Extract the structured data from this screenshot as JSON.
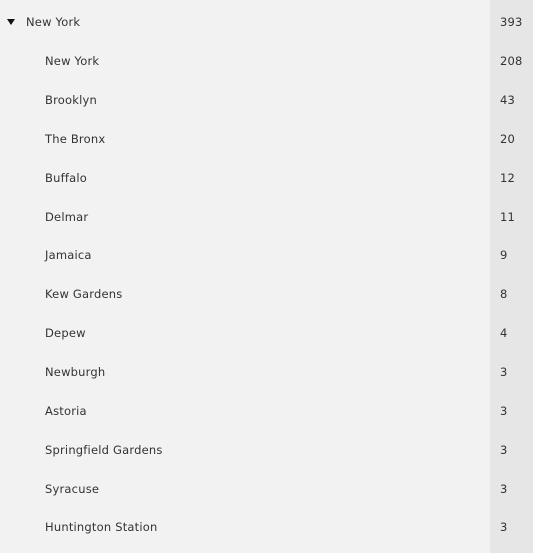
{
  "group": {
    "label": "New York",
    "count": "393",
    "expanded": true,
    "caret_icon": "caret-down-icon",
    "items": [
      {
        "label": "New York",
        "count": "208"
      },
      {
        "label": "Brooklyn",
        "count": "43"
      },
      {
        "label": "The Bronx",
        "count": "20"
      },
      {
        "label": "Buffalo",
        "count": "12"
      },
      {
        "label": "Delmar",
        "count": "11"
      },
      {
        "label": "Jamaica",
        "count": "9"
      },
      {
        "label": "Kew Gardens",
        "count": "8"
      },
      {
        "label": "Depew",
        "count": "4"
      },
      {
        "label": "Newburgh",
        "count": "3"
      },
      {
        "label": "Astoria",
        "count": "3"
      },
      {
        "label": "Springfield Gardens",
        "count": "3"
      },
      {
        "label": "Syracuse",
        "count": "3"
      },
      {
        "label": "Huntington Station",
        "count": "3"
      }
    ]
  },
  "colors": {
    "background": "#f2f2f2",
    "count_column": "#e6e6e6",
    "text": "#333333",
    "caret": "#111111"
  }
}
